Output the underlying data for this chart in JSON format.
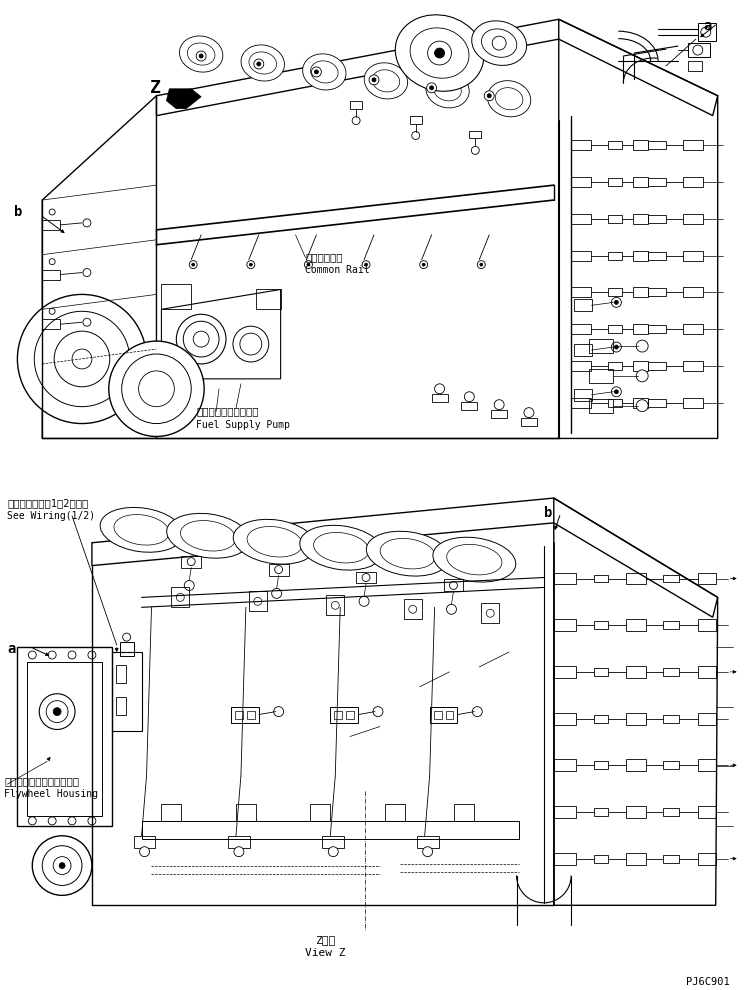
{
  "bg_color": "#ffffff",
  "lc": "#000000",
  "fig_width": 7.48,
  "fig_height": 9.9,
  "dpi": 100,
  "labels": {
    "common_rail_jp": "コモンレール",
    "common_rail_en": "Common Rail",
    "fuel_supply_jp": "フェルサプライポンプ",
    "fuel_supply_en": "Fuel Supply Pump",
    "wiring_jp": "ワイヤリング（1／2）参図",
    "wiring_en": "See Wiring(1/2)",
    "flywheel_jp": "フライホイールハウジング",
    "flywheel_en": "Flywheel Housing",
    "view_z_jp": "Z　視",
    "view_z_en": "View Z",
    "part_no": "PJ6C901",
    "label_a_top": "a",
    "label_b_top": "b",
    "label_a_bot": "a",
    "label_b_bot": "b",
    "label_z": "Z"
  }
}
